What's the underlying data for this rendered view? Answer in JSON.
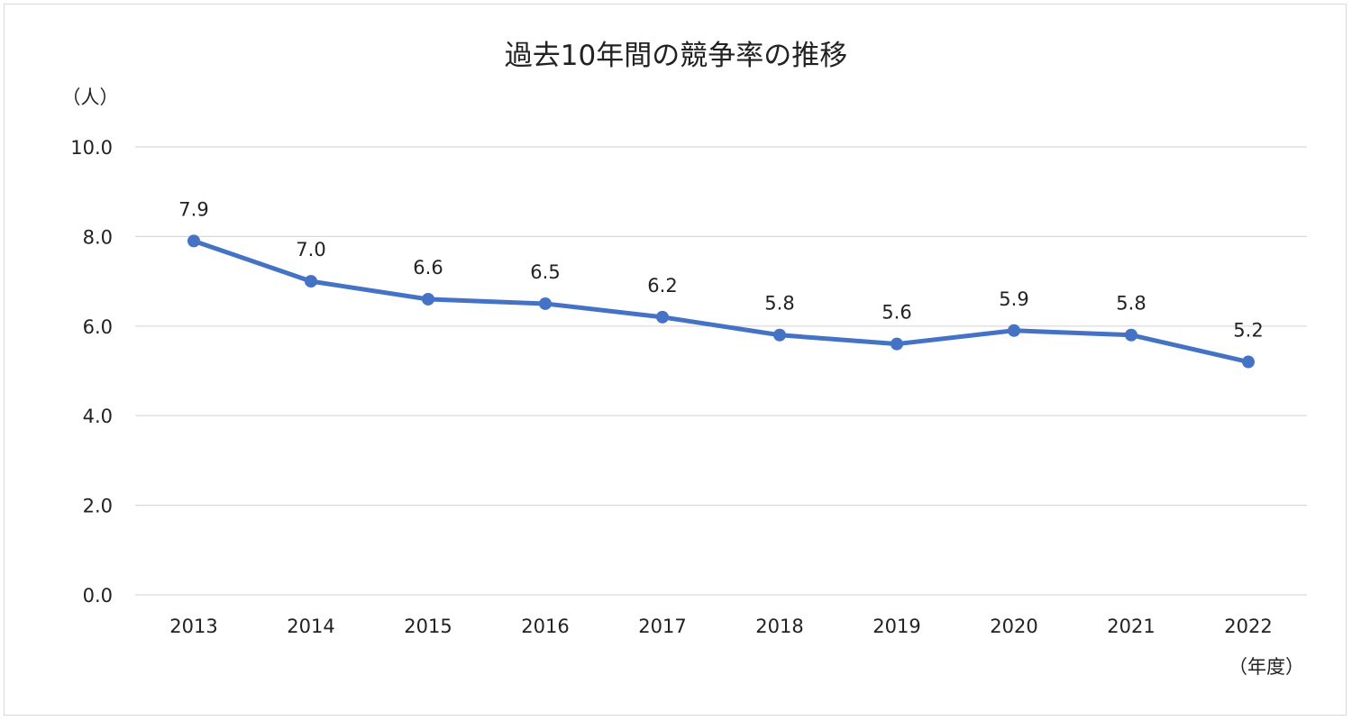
{
  "chart_data": {
    "type": "line",
    "title": "過去10年間の競争率の推移",
    "ylabel": "（人）",
    "xlabel": "（年度）",
    "categories": [
      "2013",
      "2014",
      "2015",
      "2016",
      "2017",
      "2018",
      "2019",
      "2020",
      "2021",
      "2022"
    ],
    "series": [
      {
        "values": [
          7.9,
          7.0,
          6.6,
          6.5,
          6.2,
          5.8,
          5.6,
          5.9,
          5.8,
          5.2
        ],
        "color": "#4472c4"
      }
    ],
    "data_labels": [
      "7.9",
      "7.0",
      "6.6",
      "6.5",
      "6.2",
      "5.8",
      "5.6",
      "5.9",
      "5.8",
      "5.2"
    ],
    "y_ticks": [
      0,
      2,
      4,
      6,
      8,
      10
    ],
    "y_tick_labels": [
      "0.0",
      "2.0",
      "4.0",
      "6.0",
      "8.0",
      "10.0"
    ],
    "ylim": [
      0,
      10
    ],
    "grid": true,
    "legend": "none"
  }
}
